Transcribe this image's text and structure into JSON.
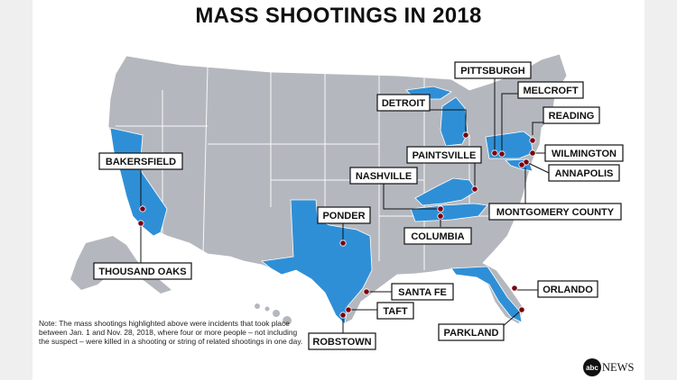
{
  "title": "MASS SHOOTINGS IN 2018",
  "colors": {
    "highlight": "#2f8fd6",
    "land": "#b4b8be",
    "border": "#ffffff",
    "marker": "#7a0010"
  },
  "highlighted_states": [
    "California",
    "Texas",
    "Michigan",
    "Kentucky",
    "Tennessee",
    "Pennsylvania",
    "Maryland",
    "Florida"
  ],
  "labels": {
    "pittsburgh": "PITTSBURGH",
    "melcroft": "MELCROFT",
    "reading": "READING",
    "wilmington": "WILMINGTON",
    "annapolis": "ANNAPOLIS",
    "montgomery": "MONTGOMERY COUNTY",
    "detroit": "DETROIT",
    "paintsville": "PAINTSVILLE",
    "nashville": "NASHVILLE",
    "columbia": "COLUMBIA",
    "ponder": "PONDER",
    "bakersfield": "BAKERSFIELD",
    "thousand_oaks": "THOUSAND OAKS",
    "santa_fe": "SANTA FE",
    "taft": "TAFT",
    "robstown": "ROBSTOWN",
    "orlando": "ORLANDO",
    "parkland": "PARKLAND"
  },
  "note": "Note: The mass shootings highlighted above were incidents that took place between Jan. 1 and Nov. 28, 2018, where four or more people – not including the suspect – were killed in a shooting or string of related shootings in one day.",
  "brand": {
    "logo_text": "abc",
    "word": "NEWS"
  }
}
